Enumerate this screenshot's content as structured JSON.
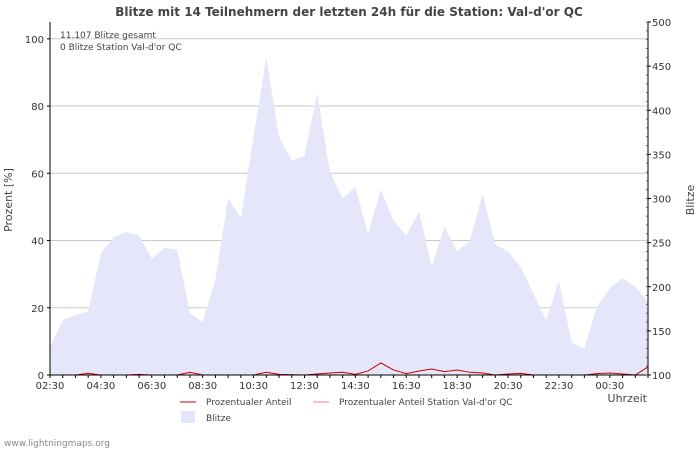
{
  "chart_data": {
    "type": "area",
    "title": "Blitze mit 14 Teilnehmern der letzten 24h für die Station: Val-d'or QC",
    "ylabel_left": "Prozent   [%]",
    "ylabel_right": "Blitze",
    "xlabel": "Uhrzeit",
    "left_ylim": [
      0,
      105
    ],
    "right_ylim": [
      100,
      500
    ],
    "left_ticks": [
      0,
      20,
      40,
      60,
      80,
      100
    ],
    "right_ticks": [
      100,
      150,
      200,
      250,
      300,
      350,
      400,
      450,
      500
    ],
    "x_range_hours": [
      0,
      23.5
    ],
    "x_tick_labels": [
      "02:30",
      "04:30",
      "06:30",
      "08:30",
      "10:30",
      "12:30",
      "14:30",
      "16:30",
      "18:30",
      "20:30",
      "22:30",
      "00:30"
    ],
    "x_tick_hours": [
      0,
      2,
      4,
      6,
      8,
      10,
      12,
      14,
      16,
      18,
      20,
      22
    ],
    "annotation_lines": [
      "11.107 Blitze gesamt",
      "0 Blitze Station Val-d'or QC"
    ],
    "series": [
      {
        "name": "Blitze",
        "axis": "right",
        "color": "#e6e6fa",
        "values": [
          [
            0,
            132
          ],
          [
            0.5,
            162
          ],
          [
            1,
            168
          ],
          [
            1.5,
            172
          ],
          [
            2,
            238
          ],
          [
            2.5,
            256
          ],
          [
            3,
            262
          ],
          [
            3.5,
            258
          ],
          [
            4,
            232
          ],
          [
            4.5,
            244
          ],
          [
            5,
            242
          ],
          [
            5.5,
            170
          ],
          [
            6,
            160
          ],
          [
            6.5,
            208
          ],
          [
            7,
            300
          ],
          [
            7.5,
            278
          ],
          [
            8,
            370
          ],
          [
            8.5,
            460
          ],
          [
            9,
            370
          ],
          [
            9.5,
            343
          ],
          [
            10,
            348
          ],
          [
            10.5,
            420
          ],
          [
            11,
            330
          ],
          [
            11.5,
            300
          ],
          [
            12,
            313
          ],
          [
            12.5,
            260
          ],
          [
            13,
            310
          ],
          [
            13.5,
            275
          ],
          [
            14,
            258
          ],
          [
            14.5,
            285
          ],
          [
            15,
            223
          ],
          [
            15.5,
            268
          ],
          [
            16,
            240
          ],
          [
            16.5,
            252
          ],
          [
            17,
            305
          ],
          [
            17.5,
            248
          ],
          [
            18,
            240
          ],
          [
            18.5,
            222
          ],
          [
            19,
            192
          ],
          [
            19.5,
            162
          ],
          [
            20,
            207
          ],
          [
            20.5,
            137
          ],
          [
            21,
            130
          ],
          [
            21.5,
            178
          ],
          [
            22,
            198
          ],
          [
            22.5,
            210
          ],
          [
            23,
            200
          ],
          [
            23.5,
            183
          ],
          [
            24,
            178
          ]
        ]
      },
      {
        "name": "Prozentualer Anteil",
        "axis": "left",
        "color": "#cc0000",
        "values": [
          [
            0,
            0
          ],
          [
            1,
            0
          ],
          [
            1.5,
            0.5
          ],
          [
            2,
            0
          ],
          [
            3,
            0
          ],
          [
            3.5,
            0.2
          ],
          [
            4,
            0
          ],
          [
            5,
            0
          ],
          [
            5.5,
            0.8
          ],
          [
            6,
            0
          ],
          [
            7,
            0
          ],
          [
            8,
            0
          ],
          [
            8.5,
            0.8
          ],
          [
            9,
            0.2
          ],
          [
            10,
            0
          ],
          [
            10.5,
            0.3
          ],
          [
            11,
            0.6
          ],
          [
            11.5,
            0.8
          ],
          [
            12,
            0.2
          ],
          [
            12.5,
            1.2
          ],
          [
            13,
            3.6
          ],
          [
            13.5,
            1.5
          ],
          [
            14,
            0.4
          ],
          [
            14.5,
            1.2
          ],
          [
            15,
            1.8
          ],
          [
            15.5,
            1.0
          ],
          [
            16,
            1.5
          ],
          [
            16.5,
            0.8
          ],
          [
            17,
            0.6
          ],
          [
            17.5,
            0
          ],
          [
            18,
            0.3
          ],
          [
            18.5,
            0.5
          ],
          [
            19,
            0
          ],
          [
            20,
            0
          ],
          [
            21,
            0
          ],
          [
            21.5,
            0.4
          ],
          [
            22,
            0.6
          ],
          [
            22.5,
            0.3
          ],
          [
            23,
            0
          ],
          [
            23.5,
            2.4
          ],
          [
            24,
            1.0
          ]
        ]
      },
      {
        "name": "Prozentualer Anteil Station Val-d'or QC",
        "axis": "left",
        "color": "#f08080",
        "values": [
          [
            0,
            0
          ],
          [
            24,
            0
          ]
        ]
      }
    ],
    "legend": {
      "items": [
        "Prozentualer Anteil",
        "Prozentualer Anteil Station Val-d'or QC",
        "Blitze"
      ]
    }
  },
  "footer": "www.lightningmaps.org"
}
